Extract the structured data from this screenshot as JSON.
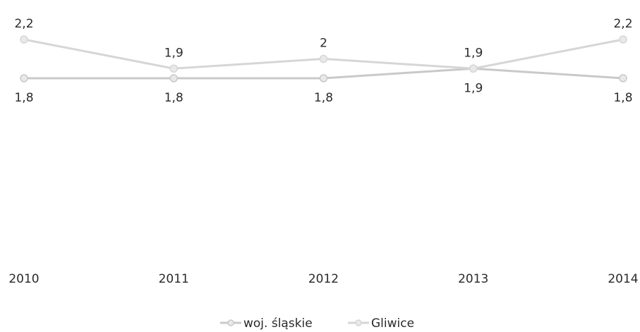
{
  "chart_data": {
    "type": "line",
    "x": [
      "2010",
      "2011",
      "2012",
      "2013",
      "2014"
    ],
    "series": [
      {
        "name": "woj. śląskie",
        "values": [
          1.8,
          1.8,
          1.8,
          1.9,
          1.8
        ],
        "labels": [
          "1,8",
          "1,8",
          "1,8",
          "1,9",
          "1,8"
        ],
        "label_position": "below",
        "color": "#c9c9c9"
      },
      {
        "name": "Gliwice",
        "values": [
          2.2,
          1.9,
          2.0,
          1.9,
          2.2
        ],
        "labels": [
          "2,2",
          "1,9",
          "2",
          "1,9",
          "2,2"
        ],
        "label_position": "above",
        "color": "#d6d6d6"
      }
    ],
    "title": "",
    "xlabel": "",
    "ylabel": "",
    "ylim": [
      0,
      2.4
    ],
    "grid": false,
    "legend": "bottom"
  }
}
